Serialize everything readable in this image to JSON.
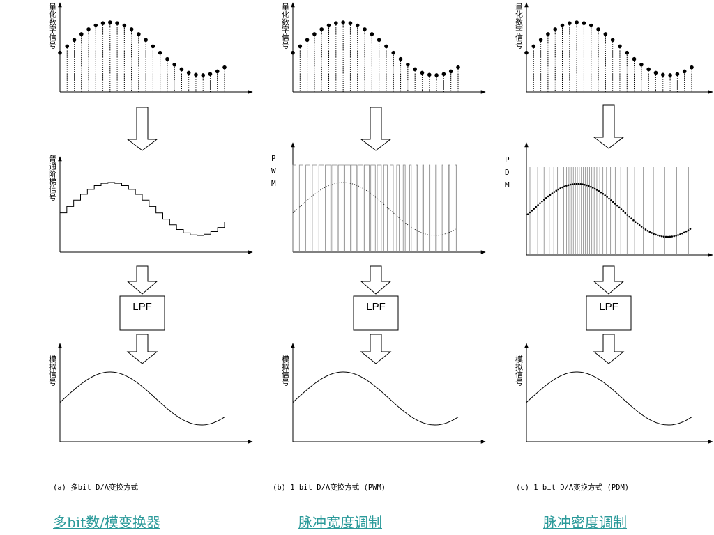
{
  "ylabels": {
    "quantized": "量化数字信号",
    "staircase": "普通阶梯信号",
    "analog": "模拟信号"
  },
  "pwm_label": [
    "P",
    "W",
    "M"
  ],
  "pdm_label": [
    "P",
    "D",
    "M"
  ],
  "lpf_label": "LPF",
  "captions": {
    "a": "(a) 多bit D/A变换方式",
    "b": "(b) 1 bit D/A变换方式 (PWM)",
    "c": "(c) 1 bit D/A变换方式 (PDM)"
  },
  "links": {
    "multibit": "多bit数/模变换器",
    "pwm": "脉冲宽度调制",
    "pdm": "脉冲密度调制"
  },
  "colors": {
    "line": "#000000",
    "link": "#2b9a9a"
  }
}
